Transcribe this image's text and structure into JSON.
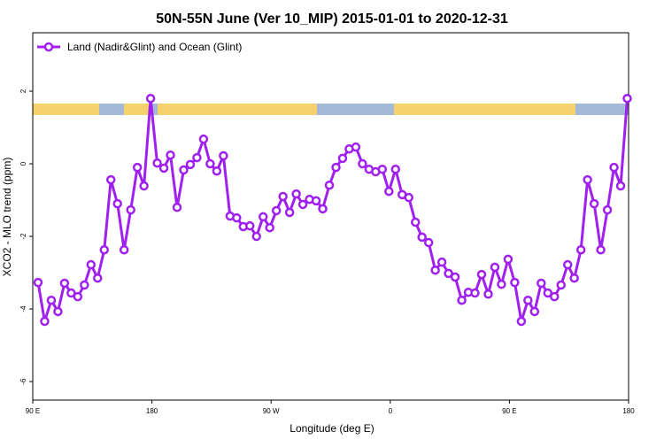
{
  "chart_data": {
    "type": "line",
    "title": "50N-55N June (Ver 10_MIP)   2015-01-01 to 2020-12-31",
    "x_label": "Longitude (deg E)",
    "y_label": "XCO2 - MLO trend (ppm)",
    "x": [
      94,
      99,
      104,
      109,
      114,
      119,
      124,
      129,
      134,
      139,
      144,
      149,
      154,
      159,
      164,
      169,
      174,
      179,
      184,
      189,
      194,
      199,
      204,
      209,
      214,
      219,
      224,
      229,
      234,
      239,
      244,
      249,
      254,
      259,
      264,
      269,
      274,
      279,
      284,
      289,
      294,
      299,
      304,
      309,
      314,
      319,
      324,
      329,
      334,
      339,
      344,
      349,
      354,
      359,
      364,
      369,
      374,
      379,
      384,
      389,
      394,
      399,
      404,
      409,
      414,
      419,
      424,
      429,
      434,
      439,
      444,
      449,
      454,
      459,
      464,
      469,
      474,
      479,
      484,
      489,
      494,
      499,
      504,
      509,
      514,
      519,
      524,
      529,
      534,
      539
    ],
    "series": [
      {
        "name": "Land (Nadir&Glint) and Ocean (Glint)",
        "color": "#a020f0",
        "values": [
          -3.27,
          -4.34,
          -3.76,
          -4.07,
          -3.29,
          -3.56,
          -3.66,
          -3.34,
          -2.78,
          -3.15,
          -2.37,
          -0.44,
          -1.1,
          -2.37,
          -1.27,
          -0.1,
          -0.61,
          1.8,
          0.02,
          -0.12,
          0.24,
          -1.2,
          -0.17,
          -0.02,
          0.17,
          0.68,
          0,
          -0.2,
          0.22,
          -1.44,
          -1.49,
          -1.73,
          -1.71,
          -2.0,
          -1.46,
          -1.76,
          -1.29,
          -0.9,
          -1.34,
          -0.83,
          -1.12,
          -0.98,
          -1.02,
          -1.24,
          -0.59,
          -0.1,
          0.15,
          0.41,
          0.46,
          0,
          -0.15,
          -0.22,
          -0.15,
          -0.76,
          -0.15,
          -0.85,
          -0.93,
          -1.61,
          -2.02,
          -2.17,
          -2.93,
          -2.71,
          -3.02,
          -3.12,
          -3.76,
          -3.54,
          -3.56,
          -3.05,
          -3.59,
          -2.85,
          -3.32,
          -2.63,
          -3.27,
          -4.34,
          -3.76,
          -4.07,
          -3.29,
          -3.56,
          -3.66,
          -3.34,
          -2.78,
          -3.15,
          -2.37,
          -0.44,
          -1.1,
          -2.37,
          -1.27,
          -0.1,
          -0.61,
          1.8
        ]
      }
    ],
    "xlim": [
      90,
      540
    ],
    "xticks": [
      {
        "value": 90,
        "label": "90 E"
      },
      180,
      {
        "value": 270,
        "label": "90 W"
      },
      {
        "value": 360,
        "label": "0"
      },
      {
        "value": 450,
        "label": "90 E"
      },
      {
        "value": 540,
        "label": "180"
      }
    ],
    "ylim": [
      -6.51,
      3.61
    ],
    "yticks": [
      2,
      0,
      -2,
      -4,
      -6
    ],
    "legend": "top-left"
  }
}
